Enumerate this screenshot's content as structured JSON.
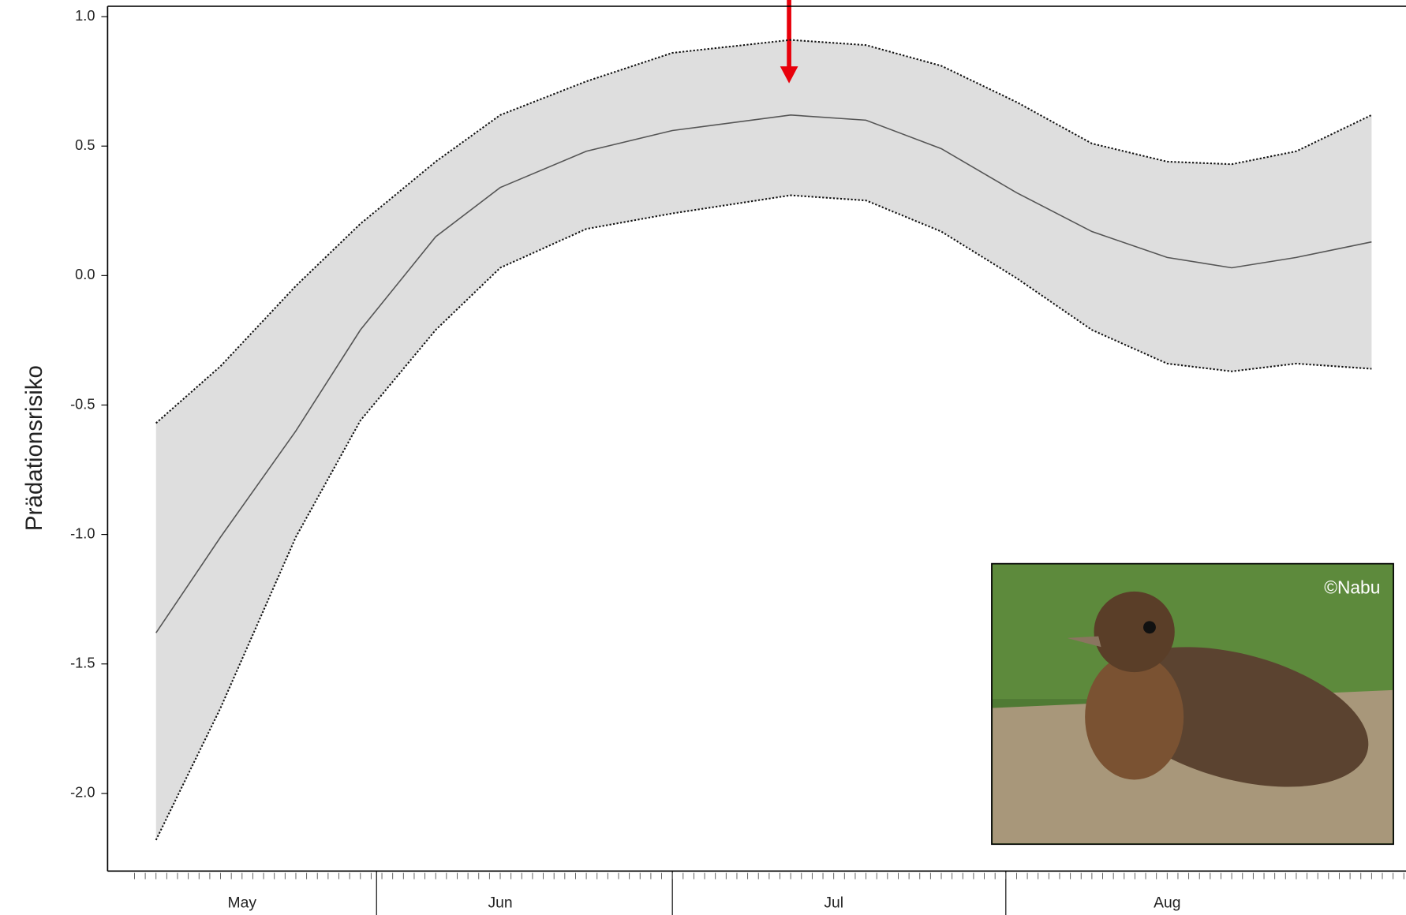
{
  "chart_data": {
    "type": "line",
    "ylabel": "Prädationsrisiko",
    "photo_credit": "©Nabu",
    "x": [
      134,
      140,
      147,
      153,
      160,
      166,
      174,
      182,
      193,
      200,
      207,
      214,
      221,
      228,
      234,
      240,
      247
    ],
    "series": [
      {
        "color": "#555555",
        "style": "solid",
        "values": [
          -1.38,
          -1.01,
          -0.6,
          -0.21,
          0.15,
          0.34,
          0.48,
          0.56,
          0.62,
          0.6,
          0.49,
          0.32,
          0.17,
          0.07,
          0.03,
          0.07,
          0.13
        ]
      },
      {
        "color": "#111111",
        "style": "dotted",
        "values": [
          -0.57,
          -0.35,
          -0.04,
          0.2,
          0.44,
          0.62,
          0.75,
          0.86,
          0.91,
          0.89,
          0.81,
          0.67,
          0.51,
          0.44,
          0.43,
          0.48,
          0.62
        ]
      },
      {
        "color": "#111111",
        "style": "dotted",
        "values": [
          -2.18,
          -1.67,
          -1.01,
          -0.56,
          -0.21,
          0.03,
          0.18,
          0.24,
          0.31,
          0.29,
          0.17,
          -0.01,
          -0.21,
          -0.34,
          -0.37,
          -0.34,
          -0.36
        ]
      }
    ],
    "band_color": "#dedede",
    "xlim": [
      129.5,
      250.2
    ],
    "xticks": [
      {
        "value": 142,
        "label": "May"
      },
      {
        "value": 166,
        "label": "Jun"
      },
      {
        "value": 197,
        "label": "Jul"
      },
      {
        "value": 228,
        "label": "Aug"
      }
    ],
    "ylim": [
      -2.3,
      1.04
    ],
    "yticks": [
      {
        "value": 1,
        "label": "1.0"
      },
      0.5,
      {
        "value": 0,
        "label": "0.0"
      },
      -0.5,
      {
        "value": -1,
        "label": "-1.0"
      },
      -1.5,
      {
        "value": -2,
        "label": "-2.0"
      }
    ]
  }
}
